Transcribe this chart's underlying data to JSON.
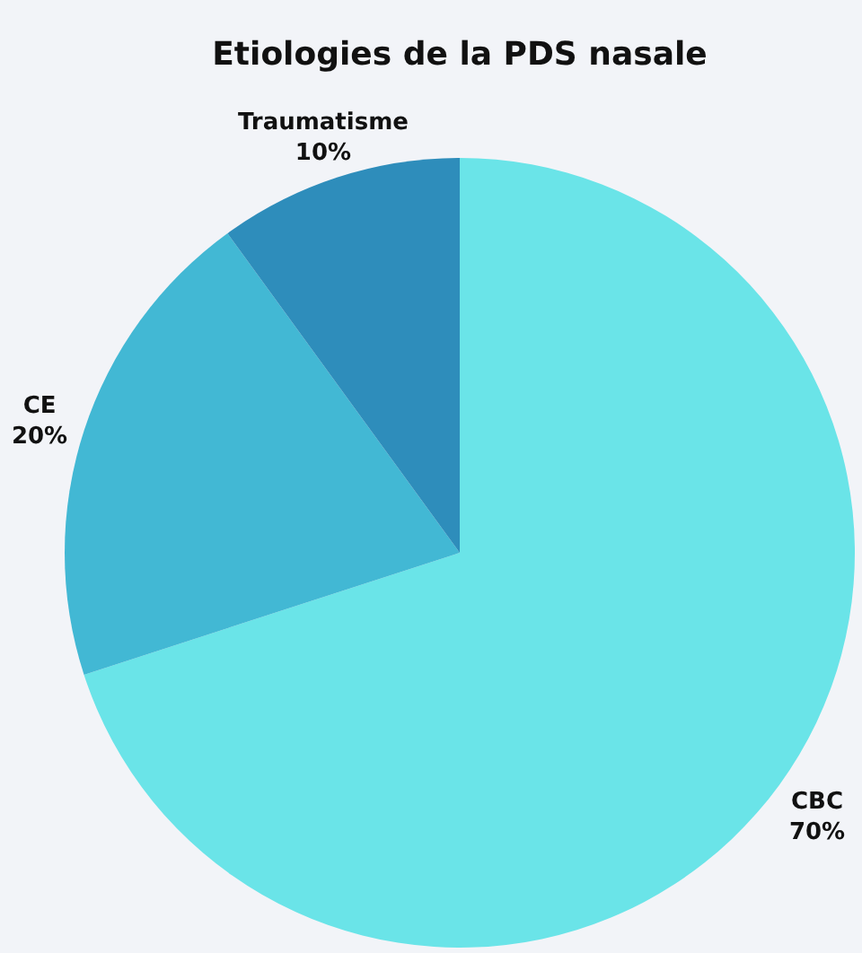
{
  "chart_data": {
    "type": "pie",
    "title": "Etiologies de la PDS nasale",
    "categories": [
      "CBC",
      "CE",
      "Traumatisme"
    ],
    "values": [
      70,
      20,
      10
    ],
    "value_labels": [
      "70%",
      "20%",
      "10%"
    ],
    "colors": [
      "#6ae4e8",
      "#42b8d4",
      "#2e8dbb"
    ]
  }
}
